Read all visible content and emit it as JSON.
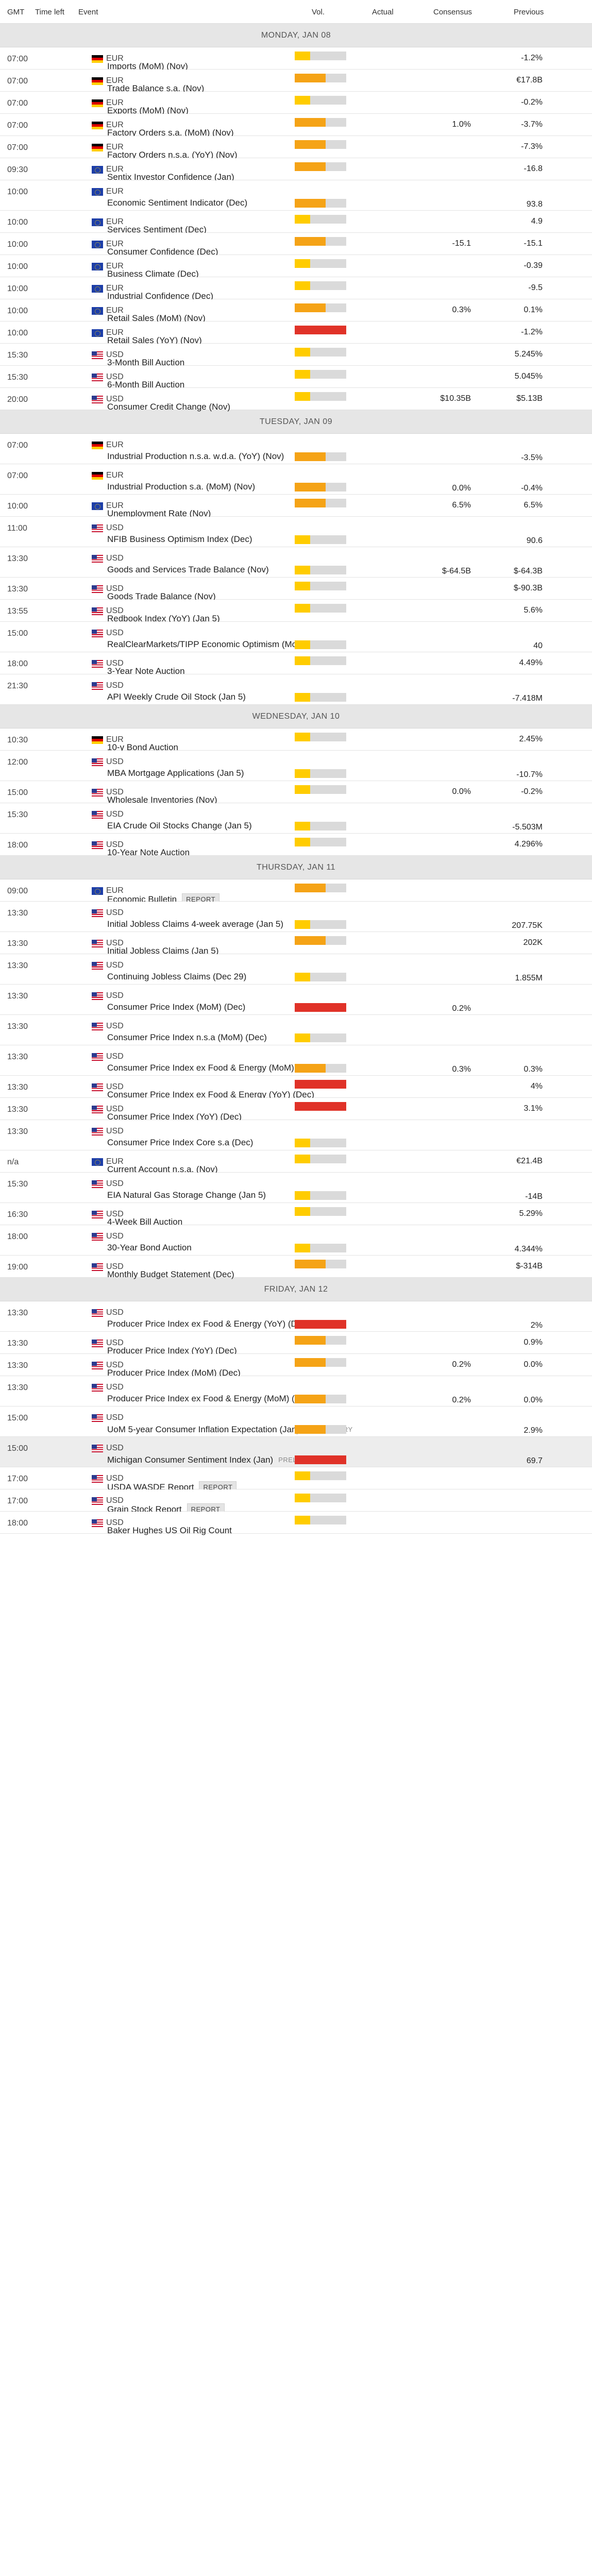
{
  "columns": {
    "gmt": "GMT",
    "time_left": "Time left",
    "event": "Event",
    "vol": "Vol.",
    "actual": "Actual",
    "consensus": "Consensus",
    "previous": "Previous"
  },
  "colors": {
    "low": "#ffcc00",
    "medium": "#f5a316",
    "high": "#e03228",
    "empty": "#dadada"
  },
  "days": [
    {
      "label": "MONDAY, JAN 08",
      "events": [
        {
          "time": "07:00",
          "flag": "de",
          "currency": "EUR",
          "name": "Imports (MoM) (Nov)",
          "vol": "low",
          "consensus": "",
          "previous": "-1.2%"
        },
        {
          "time": "07:00",
          "flag": "de",
          "currency": "EUR",
          "name": "Trade Balance s.a. (Nov)",
          "vol": "med",
          "consensus": "",
          "previous": "€17.8B"
        },
        {
          "time": "07:00",
          "flag": "de",
          "currency": "EUR",
          "name": "Exports (MoM) (Nov)",
          "vol": "low",
          "consensus": "",
          "previous": "-0.2%"
        },
        {
          "time": "07:00",
          "flag": "de",
          "currency": "EUR",
          "name": "Factory Orders s.a. (MoM) (Nov)",
          "vol": "med",
          "consensus": "1.0%",
          "previous": "-3.7%"
        },
        {
          "time": "07:00",
          "flag": "de",
          "currency": "EUR",
          "name": "Factory Orders n.s.a. (YoY) (Nov)",
          "vol": "med",
          "consensus": "",
          "previous": "-7.3%"
        },
        {
          "time": "09:30",
          "flag": "eu",
          "currency": "EUR",
          "name": "Sentix Investor Confidence (Jan)",
          "vol": "med",
          "consensus": "",
          "previous": "-16.8"
        },
        {
          "time": "10:00",
          "flag": "eu",
          "currency": "EUR",
          "name": "Economic Sentiment Indicator (Dec)",
          "vol": "med",
          "consensus": "",
          "previous": "93.8",
          "tall": true
        },
        {
          "time": "10:00",
          "flag": "eu",
          "currency": "EUR",
          "name": "Services Sentiment (Dec)",
          "vol": "low",
          "consensus": "",
          "previous": "4.9"
        },
        {
          "time": "10:00",
          "flag": "eu",
          "currency": "EUR",
          "name": "Consumer Confidence (Dec)",
          "vol": "med",
          "consensus": "-15.1",
          "previous": "-15.1"
        },
        {
          "time": "10:00",
          "flag": "eu",
          "currency": "EUR",
          "name": "Business Climate (Dec)",
          "vol": "low",
          "consensus": "",
          "previous": "-0.39"
        },
        {
          "time": "10:00",
          "flag": "eu",
          "currency": "EUR",
          "name": "Industrial Confidence (Dec)",
          "vol": "low",
          "consensus": "",
          "previous": "-9.5"
        },
        {
          "time": "10:00",
          "flag": "eu",
          "currency": "EUR",
          "name": "Retail Sales (MoM) (Nov)",
          "vol": "med",
          "consensus": "0.3%",
          "previous": "0.1%"
        },
        {
          "time": "10:00",
          "flag": "eu",
          "currency": "EUR",
          "name": "Retail Sales (YoY) (Nov)",
          "vol": "high",
          "consensus": "",
          "previous": "-1.2%"
        },
        {
          "time": "15:30",
          "flag": "us",
          "currency": "USD",
          "name": "3-Month Bill Auction",
          "vol": "low",
          "consensus": "",
          "previous": "5.245%"
        },
        {
          "time": "15:30",
          "flag": "us",
          "currency": "USD",
          "name": "6-Month Bill Auction",
          "vol": "low",
          "consensus": "",
          "previous": "5.045%"
        },
        {
          "time": "20:00",
          "flag": "us",
          "currency": "USD",
          "name": "Consumer Credit Change (Nov)",
          "vol": "low",
          "consensus": "$10.35B",
          "previous": "$5.13B"
        }
      ]
    },
    {
      "label": "TUESDAY, JAN 09",
      "events": [
        {
          "time": "07:00",
          "flag": "de",
          "currency": "EUR",
          "name": "Industrial Production n.s.a. w.d.a. (YoY) (Nov)",
          "vol": "med",
          "consensus": "",
          "previous": "-3.5%",
          "tall": true
        },
        {
          "time": "07:00",
          "flag": "de",
          "currency": "EUR",
          "name": "Industrial Production s.a. (MoM) (Nov)",
          "vol": "med",
          "consensus": "0.0%",
          "previous": "-0.4%",
          "tall": true
        },
        {
          "time": "10:00",
          "flag": "eu",
          "currency": "EUR",
          "name": "Unemployment Rate (Nov)",
          "vol": "med",
          "consensus": "6.5%",
          "previous": "6.5%"
        },
        {
          "time": "11:00",
          "flag": "us",
          "currency": "USD",
          "name": "NFIB Business Optimism Index (Dec)",
          "vol": "low",
          "consensus": "",
          "previous": "90.6",
          "tall": true
        },
        {
          "time": "13:30",
          "flag": "us",
          "currency": "USD",
          "name": "Goods and Services Trade Balance (Nov)",
          "vol": "low",
          "consensus": "$-64.5B",
          "previous": "$-64.3B",
          "tall": true
        },
        {
          "time": "13:30",
          "flag": "us",
          "currency": "USD",
          "name": "Goods Trade Balance (Nov)",
          "vol": "low",
          "consensus": "",
          "previous": "$-90.3B"
        },
        {
          "time": "13:55",
          "flag": "us",
          "currency": "USD",
          "name": "Redbook Index (YoY) (Jan 5)",
          "vol": "low",
          "consensus": "",
          "previous": "5.6%"
        },
        {
          "time": "15:00",
          "flag": "us",
          "currency": "USD",
          "name": "RealClearMarkets/TIPP Economic Optimism (MoM) (Jan)",
          "vol": "low",
          "consensus": "",
          "previous": "40",
          "tall": true
        },
        {
          "time": "18:00",
          "flag": "us",
          "currency": "USD",
          "name": "3-Year Note Auction",
          "vol": "low",
          "consensus": "",
          "previous": "4.49%"
        },
        {
          "time": "21:30",
          "flag": "us",
          "currency": "USD",
          "name": "API Weekly Crude Oil Stock (Jan 5)",
          "vol": "low",
          "consensus": "",
          "previous": "-7.418M",
          "tall": true
        }
      ]
    },
    {
      "label": "WEDNESDAY, JAN 10",
      "events": [
        {
          "time": "10:30",
          "flag": "de",
          "currency": "EUR",
          "name": "10-y Bond Auction",
          "vol": "low",
          "consensus": "",
          "previous": "2.45%"
        },
        {
          "time": "12:00",
          "flag": "us",
          "currency": "USD",
          "name": "MBA Mortgage Applications (Jan 5)",
          "vol": "low",
          "consensus": "",
          "previous": "-10.7%",
          "tall": true
        },
        {
          "time": "15:00",
          "flag": "us",
          "currency": "USD",
          "name": "Wholesale Inventories (Nov)",
          "vol": "low",
          "consensus": "0.0%",
          "previous": "-0.2%"
        },
        {
          "time": "15:30",
          "flag": "us",
          "currency": "USD",
          "name": "EIA Crude Oil Stocks Change (Jan 5)",
          "vol": "low",
          "consensus": "",
          "previous": "-5.503M",
          "tall": true
        },
        {
          "time": "18:00",
          "flag": "us",
          "currency": "USD",
          "name": "10-Year Note Auction",
          "vol": "low",
          "consensus": "",
          "previous": "4.296%"
        }
      ]
    },
    {
      "label": "THURSDAY, JAN 11",
      "events": [
        {
          "time": "09:00",
          "flag": "eu",
          "currency": "EUR",
          "name": "Economic Bulletin",
          "badge": "REPORT",
          "vol": "med",
          "consensus": "",
          "previous": ""
        },
        {
          "time": "13:30",
          "flag": "us",
          "currency": "USD",
          "name": "Initial Jobless Claims 4-week average (Jan 5)",
          "vol": "low",
          "consensus": "",
          "previous": "207.75K",
          "tall": true
        },
        {
          "time": "13:30",
          "flag": "us",
          "currency": "USD",
          "name": "Initial Jobless Claims (Jan 5)",
          "vol": "med",
          "consensus": "",
          "previous": "202K"
        },
        {
          "time": "13:30",
          "flag": "us",
          "currency": "USD",
          "name": "Continuing Jobless Claims (Dec 29)",
          "vol": "low",
          "consensus": "",
          "previous": "1.855M",
          "tall": true
        },
        {
          "time": "13:30",
          "flag": "us",
          "currency": "USD",
          "name": "Consumer Price Index (MoM) (Dec)",
          "vol": "high",
          "consensus": "0.2%",
          "previous": "",
          "tall": true
        },
        {
          "time": "13:30",
          "flag": "us",
          "currency": "USD",
          "name": "Consumer Price Index n.s.a (MoM) (Dec)",
          "vol": "low",
          "consensus": "",
          "previous": "",
          "tall": true
        },
        {
          "time": "13:30",
          "flag": "us",
          "currency": "USD",
          "name": "Consumer Price Index ex Food & Energy (MoM) (Dec)",
          "vol": "med",
          "consensus": "0.3%",
          "previous": "0.3%",
          "tall": true
        },
        {
          "time": "13:30",
          "flag": "us",
          "currency": "USD",
          "name": "Consumer Price Index ex Food & Energy (YoY) (Dec)",
          "vol": "high",
          "consensus": "",
          "previous": "4%"
        },
        {
          "time": "13:30",
          "flag": "us",
          "currency": "USD",
          "name": "Consumer Price Index (YoY) (Dec)",
          "vol": "high",
          "consensus": "",
          "previous": "3.1%"
        },
        {
          "time": "13:30",
          "flag": "us",
          "currency": "USD",
          "name": "Consumer Price Index Core s.a (Dec)",
          "vol": "low",
          "consensus": "",
          "previous": "",
          "tall": true
        },
        {
          "time": "n/a",
          "flag": "eu",
          "currency": "EUR",
          "name": "Current Account n.s.a. (Nov)",
          "vol": "low",
          "consensus": "",
          "previous": "€21.4B"
        },
        {
          "time": "15:30",
          "flag": "us",
          "currency": "USD",
          "name": "EIA Natural Gas Storage Change (Jan 5)",
          "vol": "low",
          "consensus": "",
          "previous": "-14B",
          "tall": true
        },
        {
          "time": "16:30",
          "flag": "us",
          "currency": "USD",
          "name": "4-Week Bill Auction",
          "vol": "low",
          "consensus": "",
          "previous": "5.29%"
        },
        {
          "time": "18:00",
          "flag": "us",
          "currency": "USD",
          "name": "30-Year Bond Auction",
          "vol": "low",
          "consensus": "",
          "previous": "4.344%",
          "tall": true
        },
        {
          "time": "19:00",
          "flag": "us",
          "currency": "USD",
          "name": "Monthly Budget Statement (Dec)",
          "vol": "med",
          "consensus": "",
          "previous": "$-314B"
        }
      ]
    },
    {
      "label": "FRIDAY, JAN 12",
      "events": [
        {
          "time": "13:30",
          "flag": "us",
          "currency": "USD",
          "name": "Producer Price Index ex Food & Energy (YoY) (Dec)",
          "vol": "high",
          "consensus": "",
          "previous": "2%",
          "tall": true
        },
        {
          "time": "13:30",
          "flag": "us",
          "currency": "USD",
          "name": "Producer Price Index (YoY) (Dec)",
          "vol": "med",
          "consensus": "",
          "previous": "0.9%"
        },
        {
          "time": "13:30",
          "flag": "us",
          "currency": "USD",
          "name": "Producer Price Index (MoM) (Dec)",
          "vol": "med",
          "consensus": "0.2%",
          "previous": "0.0%"
        },
        {
          "time": "13:30",
          "flag": "us",
          "currency": "USD",
          "name": "Producer Price Index ex Food & Energy (MoM) (Dec)",
          "vol": "med",
          "consensus": "0.2%",
          "previous": "0.0%",
          "tall": true
        },
        {
          "time": "15:00",
          "flag": "us",
          "currency": "USD",
          "name": "UoM 5-year Consumer Inflation Expectation (Jan)",
          "badge": "PRELIMINARY",
          "badge_plain": true,
          "vol": "med",
          "consensus": "",
          "previous": "2.9%",
          "tall": true
        },
        {
          "time": "15:00",
          "flag": "us",
          "currency": "USD",
          "name": "Michigan Consumer Sentiment Index (Jan)",
          "badge": "PRELIMINARY",
          "badge_plain": true,
          "vol": "high",
          "consensus": "",
          "previous": "69.7",
          "tall": true,
          "highlight": true
        },
        {
          "time": "17:00",
          "flag": "us",
          "currency": "USD",
          "name": "USDA WASDE Report",
          "badge": "REPORT",
          "vol": "low",
          "consensus": "",
          "previous": ""
        },
        {
          "time": "17:00",
          "flag": "us",
          "currency": "USD",
          "name": "Grain Stock Report",
          "badge": "REPORT",
          "vol": "low",
          "consensus": "",
          "previous": ""
        },
        {
          "time": "18:00",
          "flag": "us",
          "currency": "USD",
          "name": "Baker Hughes US Oil Rig Count",
          "vol": "low",
          "consensus": "",
          "previous": ""
        }
      ]
    }
  ]
}
